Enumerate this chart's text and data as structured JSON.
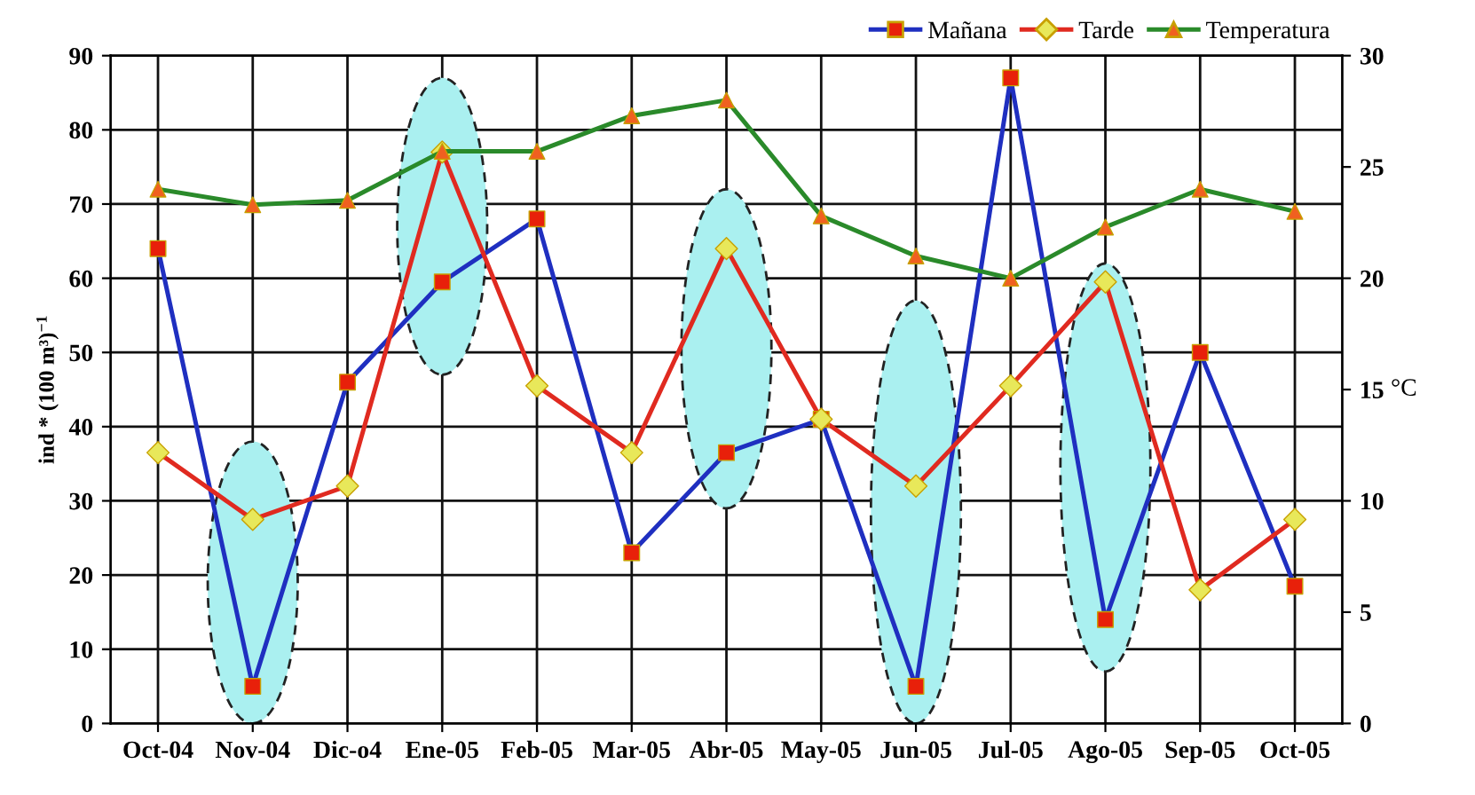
{
  "chart_data": {
    "type": "line",
    "categories": [
      "Oct-04",
      "Nov-04",
      "Dic-o4",
      "Ene-05",
      "Feb-05",
      "Mar-05",
      "Abr-05",
      "May-05",
      "Jun-05",
      "Jul-05",
      "Ago-05",
      "Sep-05",
      "Oct-05"
    ],
    "ylabel": "ind * (100 m³)$^{−1}$",
    "y2label": "°C",
    "ylim": [
      0,
      90
    ],
    "yticks": [
      0,
      10,
      20,
      30,
      40,
      50,
      60,
      70,
      80,
      90
    ],
    "y2lim": [
      0,
      30
    ],
    "y2ticks": [
      0,
      5,
      10,
      15,
      20,
      25,
      30
    ],
    "grid": true,
    "legend": "top right",
    "series": [
      {
        "name": "Mañana",
        "color": "#1f2fc0",
        "marker": "square",
        "colors": [
          "#e8200a",
          "#e8200a",
          "#e8200a",
          "#e8200a",
          "#e8200a",
          "#e8200a",
          "#e8200a",
          "#e8200a",
          "#e8200a",
          "#e8200a",
          "#e8200a",
          "#e8200a",
          "#e8200a"
        ],
        "values": [
          64,
          5,
          46,
          59.5,
          68,
          23,
          36.5,
          41,
          5,
          87,
          14,
          50,
          18.5
        ]
      },
      {
        "name": "Tarde",
        "color": "#e02a20",
        "marker": "diamond",
        "colors": [
          "#e8e85a",
          "#e8e85a",
          "#e8e85a",
          "#e8e85a",
          "#e8e85a",
          "#e8e85a",
          "#e8e85a",
          "#e8e85a",
          "#e8e85a",
          "#e8e85a",
          "#e8e85a",
          "#e8e85a",
          "#e8e85a"
        ],
        "values": [
          36.5,
          27.5,
          32,
          77,
          45.5,
          36.5,
          64,
          41,
          32,
          45.5,
          59.5,
          18,
          27.5
        ]
      },
      {
        "name": "Temperatura",
        "color": "#2a8a2a",
        "marker": "triangle",
        "axis": "y2",
        "colors": [
          "#f06020",
          "#f06020",
          "#f06020",
          "#f06020",
          "#f06020",
          "#f06020",
          "#f06020",
          "#f06020",
          "#f06020",
          "#f06020",
          "#f06020",
          "#f06020",
          "#f06020"
        ],
        "values": [
          24,
          23.3,
          23.5,
          25.7,
          25.7,
          27.3,
          28,
          22.8,
          21,
          20,
          22.3,
          24,
          23
        ]
      }
    ]
  }
}
